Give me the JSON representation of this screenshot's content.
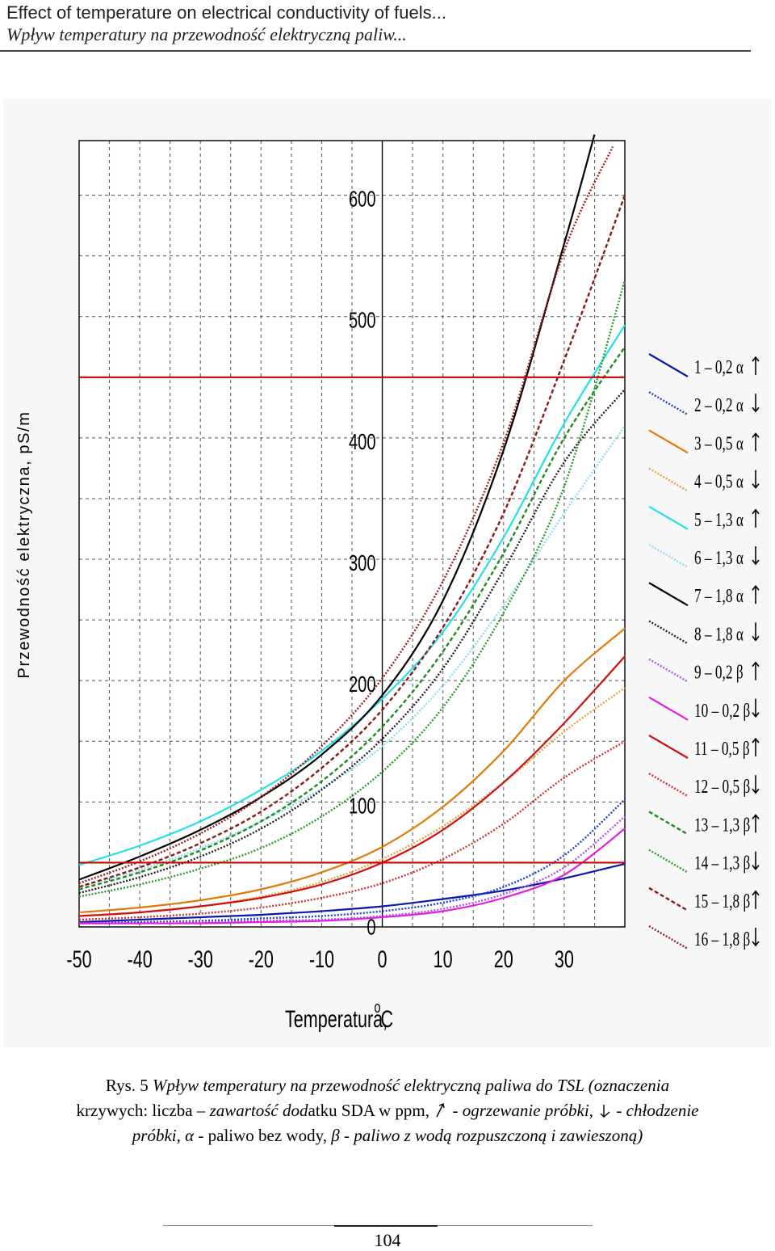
{
  "header": {
    "line1": "Effect of temperature on electrical conductivity of fuels...",
    "line2": "Wpływ temperatury na przewodność elektryczną paliw..."
  },
  "chart_data": {
    "type": "line",
    "xlabel": "Temperatura, ",
    "xlabel_sup": "o",
    "xlabel_unit": "C",
    "ylabel": "Przewodność elektryczna, pS/m",
    "xlim": [
      -50,
      40
    ],
    "ylim": [
      -3,
      645
    ],
    "grid": true,
    "xticks": [
      -50,
      -40,
      -30,
      -20,
      -10,
      0,
      10,
      20,
      30
    ],
    "yticks": [
      0,
      100,
      200,
      300,
      400,
      500,
      600
    ],
    "reference_lines": [
      {
        "y": 450,
        "color": "#cc0000"
      },
      {
        "y": 50,
        "color": "#cc0000"
      }
    ],
    "legend_position": "right",
    "series": [
      {
        "name": "1 – 0,2 α",
        "arrow": "up",
        "color": "#0a1aa6",
        "dash": "solid",
        "x": [
          -50,
          -40,
          -30,
          -20,
          -10,
          0,
          10,
          20,
          30,
          40
        ],
        "values": [
          1,
          3,
          5,
          7,
          10,
          14,
          20,
          27,
          37,
          49
        ]
      },
      {
        "name": "2 – 0,2 α",
        "arrow": "down",
        "color": "#1f3fd6",
        "dash": "dot",
        "x": [
          -50,
          -40,
          -30,
          -20,
          -10,
          0,
          10,
          20,
          30,
          40
        ],
        "values": [
          0,
          1,
          2,
          4,
          6,
          10,
          17,
          30,
          56,
          102
        ]
      },
      {
        "name": "3 – 0,5 α",
        "arrow": "up",
        "color": "#e07b0a",
        "dash": "solid",
        "x": [
          -50,
          -40,
          -30,
          -20,
          -10,
          0,
          10,
          20,
          30,
          40
        ],
        "values": [
          9,
          13,
          19,
          28,
          42,
          63,
          96,
          142,
          200,
          243
        ]
      },
      {
        "name": "4 – 0,5 α",
        "arrow": "down",
        "color": "#e8a33a",
        "dash": "dot",
        "x": [
          -50,
          -40,
          -30,
          -20,
          -10,
          0,
          10,
          20,
          30,
          40
        ],
        "values": [
          6,
          9,
          14,
          22,
          34,
          53,
          80,
          116,
          158,
          194
        ]
      },
      {
        "name": "5 – 1,3 α",
        "arrow": "up",
        "color": "#22e0e8",
        "dash": "solid",
        "x": [
          -50,
          -40,
          -30,
          -20,
          -10,
          0,
          10,
          20,
          30,
          40
        ],
        "values": [
          48,
          64,
          84,
          110,
          142,
          185,
          240,
          318,
          412,
          493
        ]
      },
      {
        "name": "6 – 1,3 α",
        "arrow": "down",
        "color": "#8adcf0",
        "dash": "dot",
        "x": [
          -50,
          -40,
          -30,
          -20,
          -10,
          0,
          10,
          20,
          30,
          40
        ],
        "values": [
          30,
          44,
          62,
          84,
          111,
          146,
          196,
          262,
          338,
          410
        ]
      },
      {
        "name": "7 – 1,8 α",
        "arrow": "up",
        "color": "#000000",
        "dash": "solid",
        "x": [
          -50,
          -40,
          -30,
          -20,
          -10,
          0,
          10,
          20,
          30,
          35
        ],
        "values": [
          36,
          55,
          77,
          104,
          139,
          188,
          266,
          390,
          560,
          650
        ]
      },
      {
        "name": "8 – 1,8 α",
        "arrow": "down",
        "color": "#202020",
        "dash": "dot",
        "x": [
          -50,
          -40,
          -30,
          -20,
          -10,
          0,
          10,
          20,
          30,
          40
        ],
        "values": [
          25,
          38,
          55,
          78,
          110,
          152,
          210,
          291,
          380,
          440
        ]
      },
      {
        "name": "9 – 0,2 β",
        "arrow": "up",
        "color": "#b050f0",
        "dash": "dot",
        "x": [
          -50,
          -40,
          -30,
          -20,
          -10,
          0,
          10,
          20,
          30,
          40
        ],
        "values": [
          0,
          0,
          1,
          2,
          3,
          6,
          12,
          24,
          46,
          88
        ]
      },
      {
        "name": "10 – 0,2 β",
        "arrow": "down",
        "color": "#e020e0",
        "dash": "solid",
        "x": [
          -50,
          -40,
          -30,
          -20,
          -10,
          0,
          10,
          20,
          30,
          40
        ],
        "values": [
          0,
          0,
          0,
          1,
          2,
          5,
          10,
          21,
          40,
          78
        ]
      },
      {
        "name": "11 – 0,5 β",
        "arrow": "up",
        "color": "#d01010",
        "dash": "solid",
        "x": [
          -50,
          -40,
          -30,
          -20,
          -10,
          0,
          10,
          20,
          30,
          40
        ],
        "values": [
          6,
          9,
          14,
          21,
          32,
          50,
          77,
          116,
          165,
          220
        ]
      },
      {
        "name": "12 – 0,5 β",
        "arrow": "down",
        "color": "#d03030",
        "dash": "dot",
        "x": [
          -50,
          -40,
          -30,
          -20,
          -10,
          0,
          10,
          20,
          30,
          40
        ],
        "values": [
          3,
          5,
          8,
          13,
          21,
          33,
          53,
          82,
          120,
          150
        ]
      },
      {
        "name": "13 – 1,3 β",
        "arrow": "up",
        "color": "#1c8a1c",
        "dash": "dash",
        "x": [
          -50,
          -40,
          -30,
          -20,
          -10,
          0,
          10,
          20,
          30,
          40
        ],
        "values": [
          28,
          42,
          60,
          84,
          117,
          162,
          224,
          305,
          400,
          475
        ]
      },
      {
        "name": "14 – 1,3 β",
        "arrow": "down",
        "color": "#2a9a2a",
        "dash": "dot",
        "x": [
          -50,
          -40,
          -30,
          -20,
          -10,
          0,
          10,
          20,
          30,
          40
        ],
        "values": [
          22,
          32,
          45,
          62,
          88,
          125,
          178,
          256,
          360,
          530
        ]
      },
      {
        "name": "15 – 1,8 β",
        "arrow": "up",
        "color": "#8a1818",
        "dash": "dash",
        "x": [
          -50,
          -40,
          -30,
          -20,
          -10,
          0,
          10,
          20,
          30,
          40
        ],
        "values": [
          30,
          46,
          66,
          92,
          128,
          176,
          244,
          338,
          464,
          600
        ]
      },
      {
        "name": "16 – 1,8 β",
        "arrow": "down",
        "color": "#9a2020",
        "dash": "dot",
        "x": [
          -50,
          -40,
          -30,
          -20,
          -10,
          0,
          10,
          20,
          30,
          38
        ],
        "values": [
          33,
          51,
          74,
          104,
          146,
          202,
          282,
          396,
          554,
          640
        ]
      }
    ]
  },
  "caption": {
    "prefix": "Rys. 5 ",
    "line1": "Wpływ temperatury na przewodność elektryczną paliwa do TSL (oznaczenia",
    "line2a": "krzywych: liczba – ",
    "line2b": "zawartość dod",
    "line2c": "atku SDA w ppm, ",
    "line2d": " - ogrzewanie próbki, ",
    "line2e": " - chłodzenie",
    "line3a": "próbki, ",
    "line3b": "α",
    "line3c": " - paliwo bez wody, ",
    "line3d": "β",
    "line3e": " - paliwo z wodą rozpuszczoną i zawieszoną)"
  },
  "page_number": "104"
}
